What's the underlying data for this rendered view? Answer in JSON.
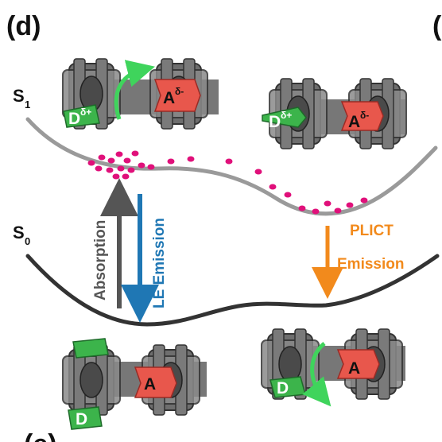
{
  "panel_label": "(d)",
  "panel_label_next_top": "(",
  "panel_label_next_bottom": "(e)",
  "states": {
    "s1": {
      "base": "S",
      "sub": "1"
    },
    "s0": {
      "base": "S",
      "sub": "0"
    }
  },
  "arrows": {
    "absorption": "Absorption",
    "le_emission": "LE Emission",
    "plict_line1": "PLICT",
    "plict_line2": "Emission"
  },
  "molecules": {
    "donor": "D",
    "acceptor": "A",
    "donor_charge": "δ+",
    "acceptor_charge": "δ-"
  },
  "colors": {
    "absorption": "#555555",
    "le_emission": "#1f77b4",
    "plict": "#f28a1c",
    "donor": "#3cb44b",
    "acceptor": "#e8574c",
    "rotation_arrow": "#3fd45c",
    "particles": "#e0107a",
    "s1_curve": "#9a9a9a",
    "s0_curve": "#333333"
  }
}
